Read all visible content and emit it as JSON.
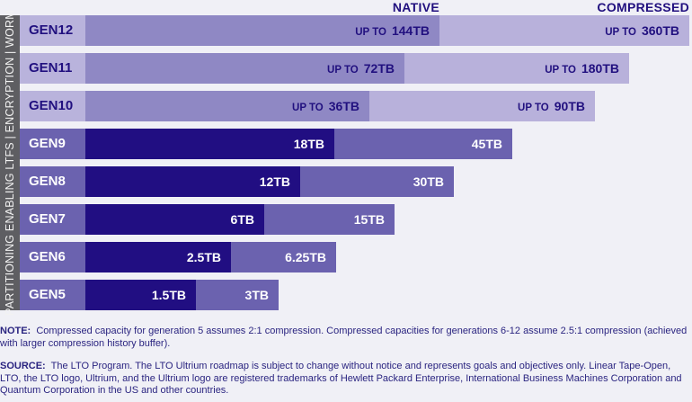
{
  "chart_data": {
    "type": "bar",
    "title": "",
    "legend": [
      "NATIVE",
      "COMPRESSED"
    ],
    "side_label": "PARTITIONING ENABLING LTFS  |  ENCRYPTION  |  WORM",
    "categories": [
      "GEN12",
      "GEN11",
      "GEN10",
      "GEN9",
      "GEN8",
      "GEN7",
      "GEN6",
      "GEN5"
    ],
    "series": [
      {
        "name": "NATIVE",
        "values": [
          144,
          72,
          36,
          18,
          12,
          6,
          2.5,
          1.5
        ],
        "labels": [
          "144TB",
          "72TB",
          "36TB",
          "18TB",
          "12TB",
          "6TB",
          "2.5TB",
          "1.5TB"
        ]
      },
      {
        "name": "COMPRESSED",
        "values": [
          360,
          180,
          90,
          45,
          30,
          15,
          6.25,
          3
        ],
        "labels": [
          "360TB",
          "180TB",
          "90TB",
          "45TB",
          "30TB",
          "15TB",
          "6.25TB",
          "3TB"
        ]
      }
    ],
    "prefix": [
      "UP TO",
      "UP TO",
      "UP TO",
      "",
      "",
      "",
      "",
      ""
    ],
    "future": [
      true,
      true,
      true,
      false,
      false,
      false,
      false,
      false
    ]
  },
  "note_label": "NOTE:",
  "note": "Compressed capacity for generation 5 assumes 2:1 compression. Compressed capacities for generations 6-12 assume 2.5:1 compression (achieved with larger compression history buffer).",
  "source_label": "SOURCE:",
  "source": "The LTO Program. The LTO Ultrium roadmap is subject to change without notice and represents goals and objectives only. Linear Tape-Open, LTO, the LTO logo, Ultrium, and the Ultrium logo are registered trademarks of Hewlett Packard Enterprise, International Business Machines Corporation and Quantum Corporation in the US and other countries.",
  "colors": {
    "native_dark": "#210e82",
    "compressed_dark": "#6b62af",
    "native_light": "#8f88c4",
    "compressed_light": "#b8b1db",
    "text": "#21107f"
  }
}
